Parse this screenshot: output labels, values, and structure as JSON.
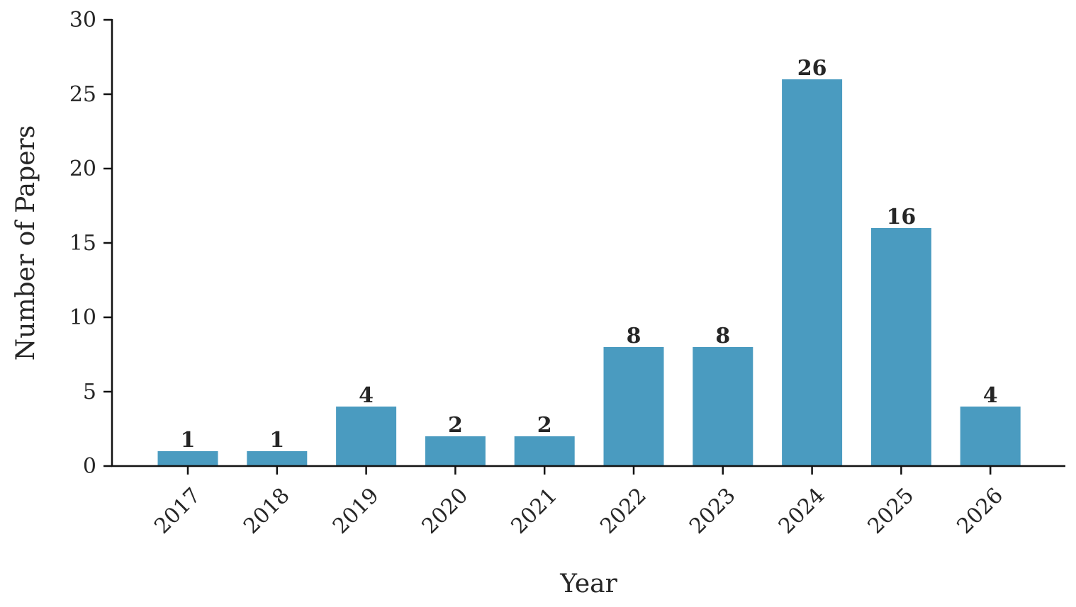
{
  "chart_data": {
    "type": "bar",
    "categories": [
      "2017",
      "2018",
      "2019",
      "2020",
      "2021",
      "2022",
      "2023",
      "2024",
      "2025",
      "2026"
    ],
    "values": [
      1,
      1,
      4,
      2,
      2,
      8,
      8,
      26,
      16,
      4
    ],
    "data_labels": [
      "1",
      "1",
      "4",
      "2",
      "2",
      "8",
      "8",
      "26",
      "16",
      "4"
    ],
    "xlabel": "Year",
    "ylabel": "Number of Papers",
    "ylim": [
      0,
      30
    ],
    "yticks": [
      "0",
      "5",
      "10",
      "15",
      "20",
      "25",
      "30"
    ],
    "ytick_values": [
      0,
      5,
      10,
      15,
      20,
      25,
      30
    ],
    "grid": false,
    "legend": "none",
    "bar_color": "#4a9bc0",
    "xtick_rotation": "45 degrees"
  }
}
